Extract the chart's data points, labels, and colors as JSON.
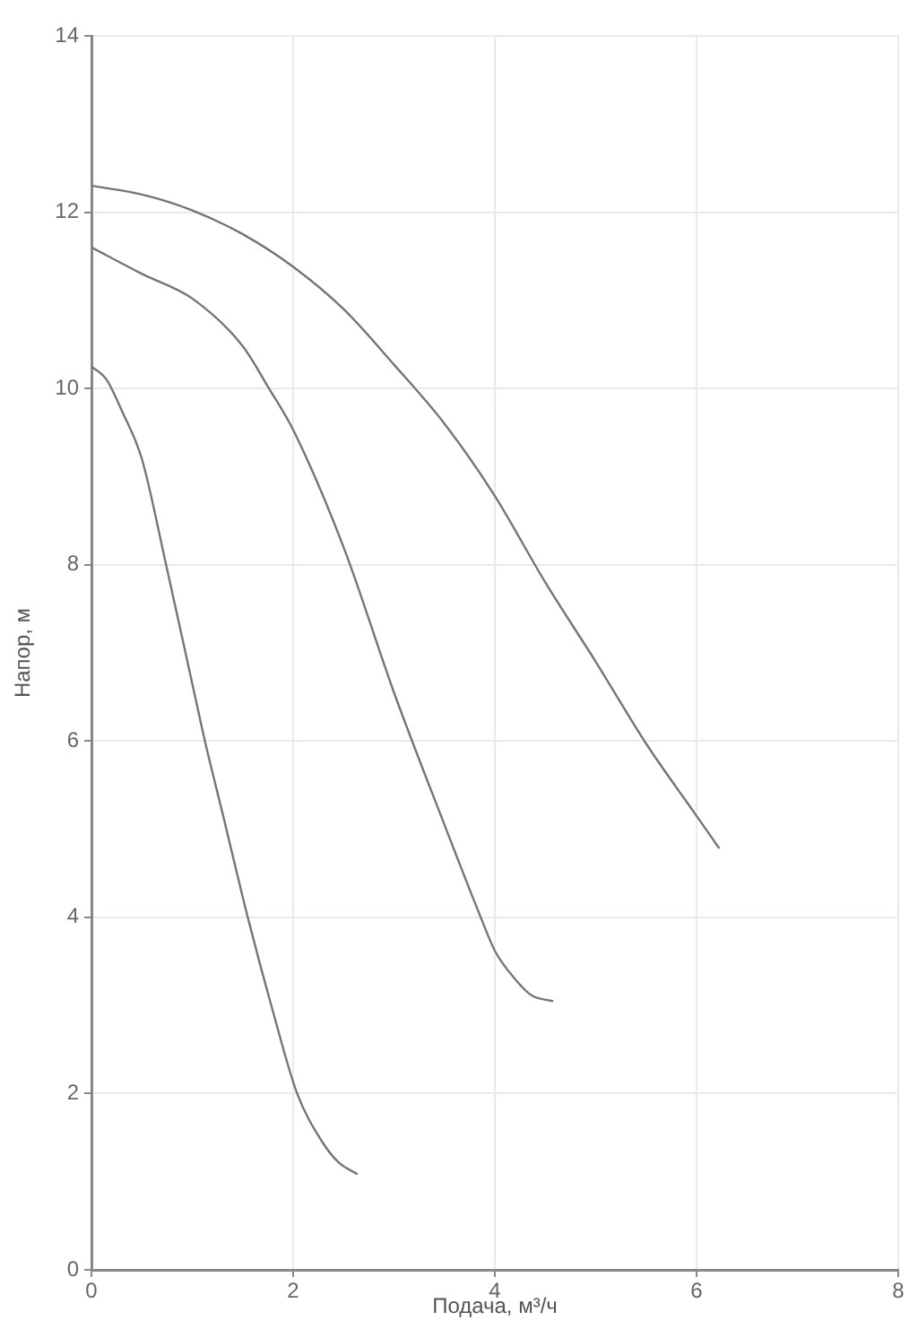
{
  "chart_data": {
    "type": "line",
    "xlabel": "Подача, м³/ч",
    "ylabel": "Напор, м",
    "xlim": [
      0,
      8
    ],
    "xticks": [
      0,
      2,
      4,
      6,
      8
    ],
    "ylim": [
      0,
      14
    ],
    "yticks": [
      0,
      2,
      4,
      6,
      8,
      10,
      12,
      14
    ],
    "grid": true,
    "marker": "none",
    "series": [
      {
        "color": "#757575",
        "x": [
          0,
          0.5,
          1,
          1.5,
          2,
          2.5,
          3,
          3.5,
          4,
          4.5,
          5,
          5.5,
          6,
          6.22
        ],
        "values": [
          12.3,
          12.2,
          12.02,
          11.75,
          11.38,
          10.9,
          10.27,
          9.6,
          8.78,
          7.8,
          6.9,
          5.97,
          5.15,
          4.79
        ]
      },
      {
        "color": "#757575",
        "x": [
          0,
          0.5,
          1,
          1.5,
          1.76,
          2,
          2.5,
          3,
          3.5,
          3.86,
          4,
          4.2,
          4.37,
          4.57
        ],
        "values": [
          11.6,
          11.3,
          11.02,
          10.48,
          10,
          9.53,
          8.2,
          6.55,
          5.05,
          4,
          3.62,
          3.3,
          3.11,
          3.05
        ]
      },
      {
        "color": "#757575",
        "x": [
          0,
          0.15,
          0.3,
          0.5,
          0.74,
          1,
          1.125,
          1.3,
          1.55,
          1.8,
          2.04,
          2.29,
          2.45,
          2.63
        ],
        "values": [
          10.25,
          10.1,
          9.75,
          9.2,
          8,
          6.65,
          6,
          5.18,
          4,
          2.93,
          2,
          1.45,
          1.22,
          1.09
        ]
      }
    ]
  }
}
